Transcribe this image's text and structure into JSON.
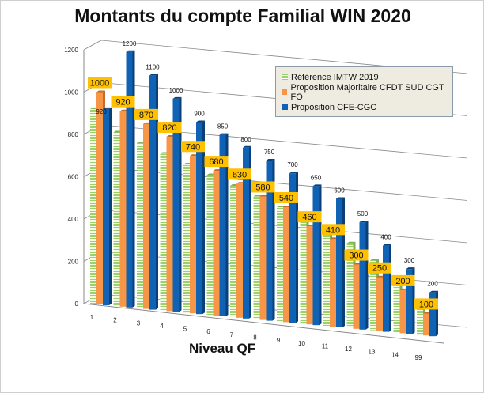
{
  "chart_data": {
    "type": "bar",
    "title": "Montants du compte Familial WIN 2020",
    "xlabel": "Niveau QF",
    "ylabel": "",
    "ylim": [
      0,
      1200
    ],
    "yticks": [
      0,
      200,
      400,
      600,
      800,
      1000,
      1200
    ],
    "grid": true,
    "legend_position": "top-right",
    "categories": [
      "1",
      "2",
      "3",
      "4",
      "5",
      "6",
      "7",
      "8",
      "9",
      "10",
      "11",
      "12",
      "13",
      "14",
      "99"
    ],
    "series": [
      {
        "name": "Référence IMTW 2019",
        "color": "#9bd16a",
        "values": [
          920,
          820,
          780,
          740,
          700,
          660,
          620,
          580,
          540,
          500,
          460,
          400,
          330,
          230,
          160
        ],
        "labeled": false
      },
      {
        "name": "Proposition Majoritaire CFDT SUD CGT FO",
        "color": "#f79646",
        "values": [
          1000,
          920,
          870,
          820,
          740,
          680,
          630,
          580,
          540,
          460,
          410,
          300,
          250,
          200,
          100
        ],
        "labeled": true
      },
      {
        "name": "Proposition CFE-CGC",
        "color": "#0f62b4",
        "values": [
          920,
          1200,
          1100,
          1000,
          900,
          850,
          800,
          750,
          700,
          650,
          600,
          500,
          400,
          300,
          200
        ],
        "labeled": true
      }
    ]
  }
}
